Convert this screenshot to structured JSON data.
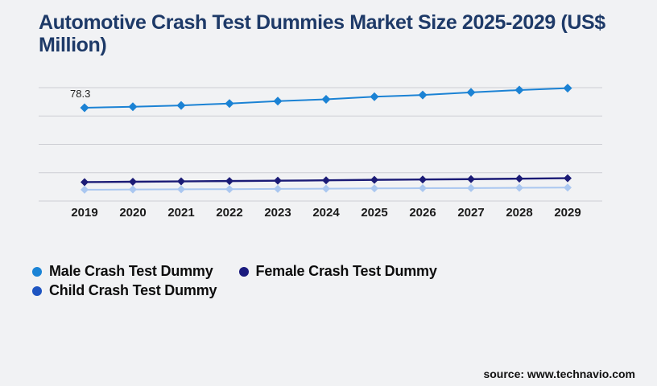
{
  "colors": {
    "background": "#f1f2f4",
    "title": "#1e3a68",
    "gridline": "#cdced3",
    "male_series": "#1b82d4",
    "female_series": "#1b1b76",
    "child_series_line": "#aac7f0",
    "child_legend_dot": "#1e55c1"
  },
  "source": {
    "text": "source: www.technavio.com"
  },
  "chart_data": {
    "type": "line",
    "title": "Automotive Crash Test Dummies Market Size 2025-2029 (US$ Million)",
    "xlabel": "",
    "ylabel": "",
    "x": [
      2019,
      2020,
      2021,
      2022,
      2023,
      2024,
      2025,
      2026,
      2027,
      2028,
      2029
    ],
    "series": [
      {
        "name": "Male Crash Test Dummy",
        "color": "#1b82d4",
        "legend_color": "#1b84d6",
        "marker": "diamond",
        "values": [
          78.3,
          79.2,
          80.3,
          81.9,
          83.9,
          85.4,
          87.6,
          89.0,
          91.2,
          93.2,
          94.8
        ]
      },
      {
        "name": "Female Crash Test Dummy",
        "color": "#1b1b76",
        "legend_color": "#1b1b7e",
        "marker": "diamond",
        "values": [
          15.9,
          16.2,
          16.5,
          16.8,
          17.1,
          17.4,
          17.8,
          18.1,
          18.4,
          18.8,
          19.2
        ]
      },
      {
        "name": "Child Crash Test Dummy",
        "color": "#aac7f0",
        "legend_color": "#1e55c1",
        "marker": "diamond",
        "values": [
          9.5,
          9.7,
          9.9,
          10.0,
          10.2,
          10.4,
          10.6,
          10.8,
          10.9,
          11.1,
          11.3
        ]
      }
    ],
    "annotations": [
      {
        "text": "78.3",
        "series_index": 0,
        "x_index": 0
      }
    ],
    "ylim": [
      0,
      95.2
    ],
    "grid": true,
    "gridline_count": 5,
    "y_axis_labels_visible": false,
    "legend_position": "bottom-left"
  }
}
